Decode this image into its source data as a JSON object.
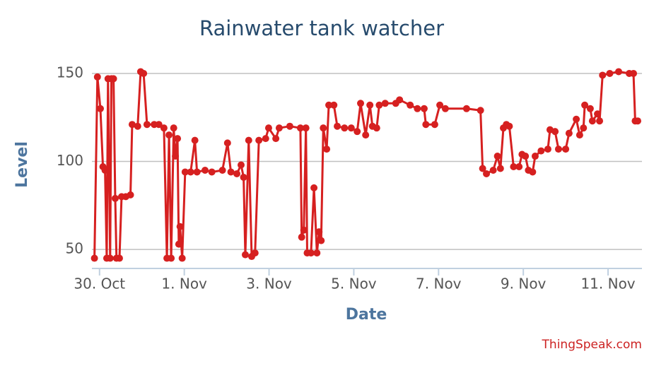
{
  "chart_data": {
    "type": "line",
    "title": "Rainwater tank watcher",
    "xlabel": "Date",
    "ylabel": "Level",
    "credits": "ThingSpeak.com",
    "color": "#d62020",
    "grid": true,
    "xlim": [
      -0.18,
      12.8
    ],
    "xticks": [
      {
        "value": 0,
        "label": "30. Oct"
      },
      {
        "value": 2,
        "label": "1. Nov"
      },
      {
        "value": 4,
        "label": "3. Nov"
      },
      {
        "value": 6,
        "label": "5. Nov"
      },
      {
        "value": 8,
        "label": "7. Nov"
      },
      {
        "value": 10,
        "label": "9. Nov"
      },
      {
        "value": 12,
        "label": "11. Nov"
      }
    ],
    "ylim": [
      39.2,
      155.6
    ],
    "yticks": [
      50,
      100,
      150
    ],
    "x": [
      -0.12,
      -0.05,
      0.02,
      0.08,
      0.13,
      0.17,
      0.2,
      0.25,
      0.28,
      0.33,
      0.37,
      0.4,
      0.47,
      0.52,
      0.62,
      0.73,
      0.77,
      0.9,
      0.97,
      1.04,
      1.12,
      1.29,
      1.4,
      1.52,
      1.59,
      1.64,
      1.69,
      1.75,
      1.79,
      1.84,
      1.87,
      1.9,
      1.95,
      2.02,
      2.15,
      2.25,
      2.3,
      2.49,
      2.65,
      2.9,
      3.02,
      3.1,
      3.24,
      3.34,
      3.4,
      3.44,
      3.52,
      3.59,
      3.67,
      3.76,
      3.92,
      3.99,
      4.16,
      4.24,
      4.49,
      4.74,
      4.77,
      4.82,
      4.87,
      4.9,
      4.99,
      5.06,
      5.13,
      5.18,
      5.23,
      5.28,
      5.36,
      5.41,
      5.53,
      5.61,
      5.78,
      5.94,
      6.08,
      6.16,
      6.28,
      6.38,
      6.44,
      6.54,
      6.6,
      6.74,
      6.99,
      7.08,
      7.33,
      7.5,
      7.66,
      7.7,
      7.91,
      8.03,
      8.16,
      8.66,
      8.99,
      9.04,
      9.13,
      9.29,
      9.39,
      9.46,
      9.53,
      9.6,
      9.67,
      9.77,
      9.9,
      9.97,
      10.05,
      10.12,
      10.22,
      10.28,
      10.42,
      10.58,
      10.63,
      10.75,
      10.83,
      11.0,
      11.08,
      11.25,
      11.33,
      11.42,
      11.45,
      11.58,
      11.63,
      11.75,
      11.8,
      11.87,
      12.04,
      12.25,
      12.5,
      12.6,
      12.64,
      12.7
    ],
    "values": [
      45,
      148,
      130,
      97,
      95,
      45,
      147,
      45,
      147,
      147,
      79,
      45,
      45,
      80,
      80,
      81,
      121,
      120,
      151,
      150,
      121,
      121,
      121,
      119,
      45,
      115,
      45,
      119,
      103,
      113,
      53,
      63,
      45,
      94,
      94,
      112,
      94,
      95,
      94,
      95,
      110.5,
      94,
      93,
      98,
      91,
      47,
      112,
      46,
      48,
      112,
      113,
      119,
      113,
      119,
      120,
      119,
      57,
      61,
      119,
      48,
      48,
      85,
      48,
      60,
      55,
      119,
      107,
      132,
      132,
      120,
      119,
      119,
      117,
      133,
      115,
      132,
      120,
      119,
      132,
      133,
      133,
      135,
      132,
      130,
      130,
      121,
      121,
      132,
      130,
      130,
      129,
      96,
      93,
      95,
      103,
      96,
      119,
      121,
      120,
      97,
      97,
      104,
      103,
      95,
      94,
      103,
      106,
      107,
      118,
      117,
      107,
      107,
      116,
      124,
      115,
      119,
      132,
      130,
      123,
      127,
      123,
      149,
      150,
      151,
      150,
      150,
      123,
      123
    ]
  }
}
